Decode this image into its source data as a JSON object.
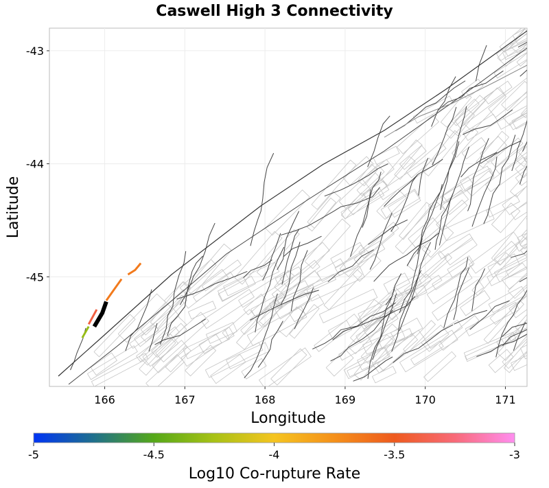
{
  "chart_data": {
    "type": "map",
    "title": "Caswell High 3 Connectivity",
    "xlabel": "Longitude",
    "ylabel": "Latitude",
    "xlim": [
      165.31,
      171.27
    ],
    "ylim": [
      -45.97,
      -42.8
    ],
    "xticks": [
      166,
      167,
      168,
      169,
      170,
      171
    ],
    "xtick_labels": [
      "166",
      "167",
      "168",
      "169",
      "170",
      "171"
    ],
    "yticks": [
      -43,
      -44,
      -45
    ],
    "ytick_labels": [
      "-43",
      "-44",
      "-45"
    ],
    "grid": true,
    "highlighted_sections": [
      {
        "name": "source",
        "color": "#000000",
        "coords": [
          [
            165.87,
            -45.44
          ],
          [
            165.97,
            -45.32
          ],
          [
            166.02,
            -45.22
          ]
        ]
      },
      {
        "name": "co-rupture",
        "value": -4.3,
        "coords": [
          [
            165.72,
            -45.54
          ],
          [
            165.8,
            -45.44
          ]
        ]
      },
      {
        "name": "co-rupture",
        "value": -3.4,
        "coords": [
          [
            165.8,
            -45.42
          ],
          [
            165.9,
            -45.29
          ]
        ]
      },
      {
        "name": "co-rupture",
        "value": -3.65,
        "coords": [
          [
            166.02,
            -45.21
          ],
          [
            166.1,
            -45.13
          ],
          [
            166.21,
            -45.02
          ]
        ]
      },
      {
        "name": "co-rupture",
        "value": -3.65,
        "coords": [
          [
            166.29,
            -44.98
          ],
          [
            166.38,
            -44.94
          ],
          [
            166.45,
            -44.88
          ]
        ]
      }
    ],
    "colorbar": {
      "label": "Log10 Co-rupture Rate",
      "range": [
        -5,
        -3
      ],
      "ticks": [
        -5,
        -4.5,
        -4,
        -3.5,
        -3
      ],
      "tick_labels": [
        "-5",
        "-4.5",
        "-4",
        "-3.5",
        "-3"
      ],
      "stops": [
        {
          "v": -5,
          "c": "#0034f5"
        },
        {
          "v": -4.75,
          "c": "#1f708c"
        },
        {
          "v": -4.5,
          "c": "#55a818"
        },
        {
          "v": -4.25,
          "c": "#a8c216"
        },
        {
          "v": -4,
          "c": "#f5c420"
        },
        {
          "v": -3.75,
          "c": "#f5901a"
        },
        {
          "v": -3.5,
          "c": "#ee5a1e"
        },
        {
          "v": -3.25,
          "c": "#f86a78"
        },
        {
          "v": -3,
          "c": "#ff8ef0"
        }
      ]
    }
  }
}
